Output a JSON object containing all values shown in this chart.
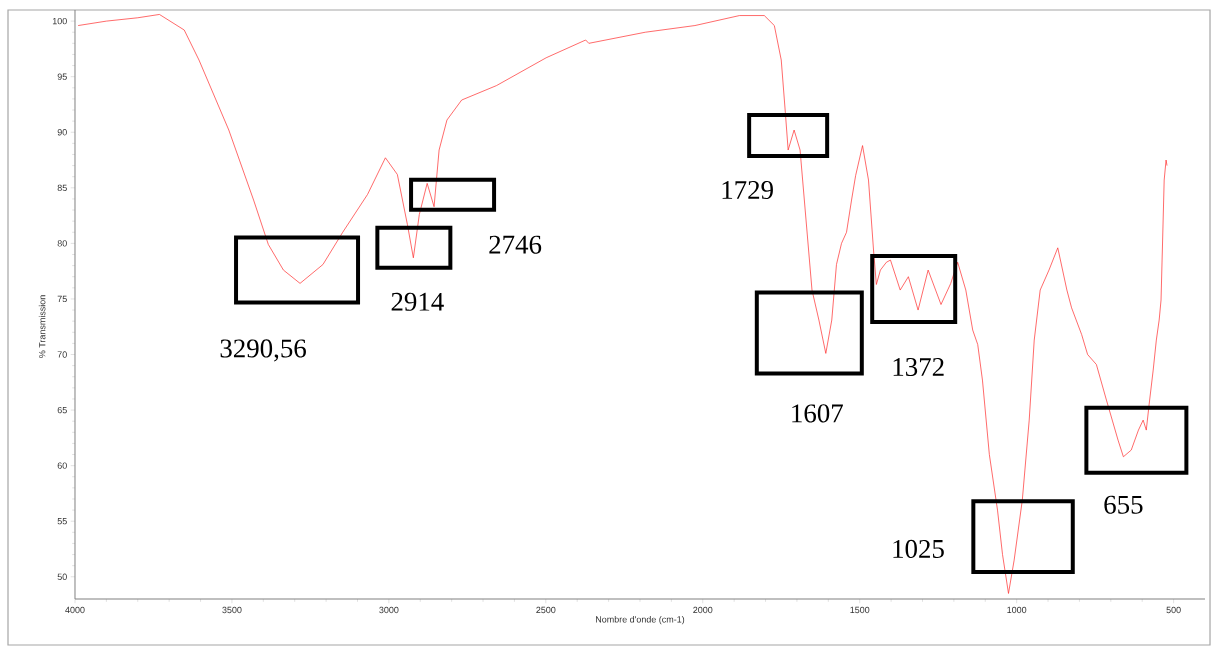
{
  "chart_data": {
    "type": "line",
    "xlabel": "Nombre d'onde (cm-1)",
    "ylabel": "% Transmission",
    "x": [
      3990,
      3900,
      3800,
      3731,
      3652,
      3605,
      3510,
      3431,
      3384,
      3336,
      3283,
      3210,
      3147,
      3068,
      3011,
      2973,
      2941,
      2922,
      2903,
      2878,
      2856,
      2840,
      2815,
      2768,
      2657,
      2499,
      2373,
      2363,
      2183,
      2025,
      1883,
      1804,
      1772,
      1750,
      1737,
      1728,
      1709,
      1690,
      1671,
      1652,
      1630,
      1608,
      1589,
      1574,
      1558,
      1542,
      1526,
      1513,
      1491,
      1472,
      1456,
      1447,
      1434,
      1415,
      1402,
      1371,
      1345,
      1314,
      1282,
      1241,
      1210,
      1188,
      1162,
      1140,
      1124,
      1109,
      1087,
      1061,
      1045,
      1026,
      1008,
      982,
      960,
      944,
      925,
      897,
      869,
      840,
      825,
      793,
      774,
      746,
      714,
      677,
      660,
      635,
      612,
      597,
      587,
      578,
      565,
      555,
      546,
      540,
      530,
      524,
      521
    ],
    "series": [
      {
        "color": "#ff2a2a",
        "values": [
          99.6,
          100.0,
          100.3,
          100.6,
          99.2,
          96.5,
          90.2,
          83.9,
          79.9,
          77.6,
          76.4,
          78.1,
          81.0,
          84.4,
          87.7,
          86.2,
          81.7,
          78.7,
          82.6,
          85.4,
          83.3,
          88.4,
          91.1,
          92.9,
          94.2,
          96.7,
          98.3,
          98.0,
          99.0,
          99.6,
          100.5,
          100.5,
          99.6,
          96.5,
          91.8,
          88.4,
          90.2,
          88.4,
          82.1,
          75.8,
          73.1,
          70.1,
          73.1,
          78.1,
          80.0,
          81.0,
          83.9,
          86.1,
          88.8,
          85.7,
          79.4,
          76.3,
          77.6,
          78.3,
          78.5,
          75.8,
          77.0,
          74.0,
          77.6,
          74.5,
          76.4,
          78.3,
          75.8,
          72.2,
          70.9,
          67.7,
          61.0,
          56.0,
          52.0,
          48.5,
          51.5,
          56.9,
          64.1,
          71.3,
          75.8,
          77.6,
          79.6,
          75.8,
          74.2,
          71.8,
          70.0,
          69.1,
          65.9,
          62.3,
          60.8,
          61.4,
          63.2,
          64.1,
          63.2,
          65.5,
          68.6,
          71.3,
          73.1,
          74.9,
          85.7,
          87.5,
          87.0
        ]
      }
    ],
    "xlim": [
      4000,
      400
    ],
    "ylim": [
      48,
      101
    ],
    "xticks": [
      4000,
      3500,
      3000,
      2500,
      2000,
      1500,
      1000,
      500
    ],
    "yticks": [
      50,
      55,
      60,
      65,
      70,
      75,
      80,
      85,
      90,
      95,
      100
    ],
    "annotations": [
      {
        "text": "3290,56",
        "x": 3283,
        "y": 76.4
      },
      {
        "text": "2914",
        "x": 2922,
        "y": 78.7
      },
      {
        "text": "2746",
        "x": 2856,
        "y": 83.3
      },
      {
        "text": "1729",
        "x": 1728,
        "y": 88.4
      },
      {
        "text": "1607",
        "x": 1608,
        "y": 70.1
      },
      {
        "text": "1372",
        "x": 1371,
        "y": 75.8
      },
      "1025",
      {
        "text": "655",
        "x": 660,
        "y": 60.8
      }
    ]
  }
}
